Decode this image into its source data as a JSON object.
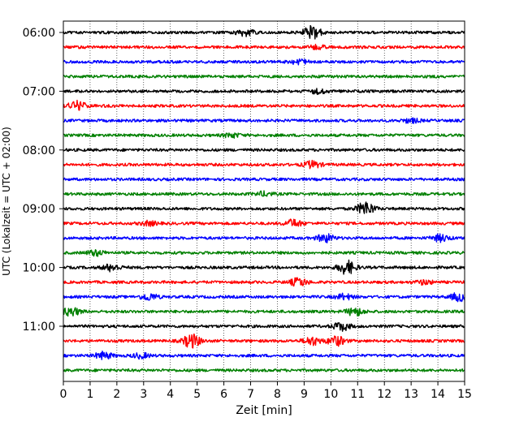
{
  "chart_data": {
    "type": "line",
    "xlabel": "Zeit  [min]",
    "ylabel": "UTC (Lokalzeit = UTC + 02:00)",
    "xlim": [
      0,
      15
    ],
    "x_ticks": [
      0,
      1,
      2,
      3,
      4,
      5,
      6,
      7,
      8,
      9,
      10,
      11,
      12,
      13,
      14,
      15
    ],
    "x_tick_labels": [
      "0",
      "1",
      "2",
      "3",
      "4",
      "5",
      "6",
      "7",
      "8",
      "9",
      "10",
      "11",
      "12",
      "13",
      "14",
      "15"
    ],
    "x_grid": true,
    "y_ticks": [
      "06:00",
      "07:00",
      "08:00",
      "09:00",
      "10:00",
      "11:00"
    ],
    "trace_interval_min": 15,
    "first_trace": "06:00",
    "trace_colors": [
      "#000000",
      "#ff0000",
      "#0000ff",
      "#008000"
    ],
    "series": [
      {
        "start": "06:00",
        "color": "#000000",
        "events": [
          {
            "t": 6.8,
            "amp": 0.45
          },
          {
            "t": 9.3,
            "amp": 1.0
          }
        ]
      },
      {
        "start": "06:15",
        "color": "#ff0000",
        "events": [
          {
            "t": 9.5,
            "amp": 0.25
          }
        ]
      },
      {
        "start": "06:30",
        "color": "#0000ff",
        "events": [
          {
            "t": 8.8,
            "amp": 0.35
          }
        ]
      },
      {
        "start": "06:45",
        "color": "#008000",
        "events": []
      },
      {
        "start": "07:00",
        "color": "#000000",
        "events": [
          {
            "t": 9.5,
            "amp": 0.3
          }
        ]
      },
      {
        "start": "07:15",
        "color": "#ff0000",
        "events": [
          {
            "t": 0.5,
            "amp": 0.7
          }
        ]
      },
      {
        "start": "07:30",
        "color": "#0000ff",
        "events": [
          {
            "t": 13.0,
            "amp": 0.3
          }
        ]
      },
      {
        "start": "07:45",
        "color": "#008000",
        "events": [
          {
            "t": 6.3,
            "amp": 0.3
          }
        ]
      },
      {
        "start": "08:00",
        "color": "#000000",
        "events": []
      },
      {
        "start": "08:15",
        "color": "#ff0000",
        "events": [
          {
            "t": 9.3,
            "amp": 0.5
          }
        ]
      },
      {
        "start": "08:30",
        "color": "#0000ff",
        "events": []
      },
      {
        "start": "08:45",
        "color": "#008000",
        "events": [
          {
            "t": 7.5,
            "amp": 0.3
          }
        ]
      },
      {
        "start": "09:00",
        "color": "#000000",
        "events": [
          {
            "t": 11.3,
            "amp": 1.0
          }
        ]
      },
      {
        "start": "09:15",
        "color": "#ff0000",
        "events": [
          {
            "t": 8.6,
            "amp": 0.55
          },
          {
            "t": 3.2,
            "amp": 0.3
          }
        ]
      },
      {
        "start": "09:30",
        "color": "#0000ff",
        "events": [
          {
            "t": 9.8,
            "amp": 0.6
          },
          {
            "t": 14.1,
            "amp": 0.5
          }
        ]
      },
      {
        "start": "09:45",
        "color": "#008000",
        "events": [
          {
            "t": 1.2,
            "amp": 0.4
          }
        ]
      },
      {
        "start": "10:00",
        "color": "#000000",
        "events": [
          {
            "t": 10.6,
            "amp": 1.0
          },
          {
            "t": 1.8,
            "amp": 0.5
          }
        ]
      },
      {
        "start": "10:15",
        "color": "#ff0000",
        "events": [
          {
            "t": 8.8,
            "amp": 0.6
          },
          {
            "t": 13.5,
            "amp": 0.3
          }
        ]
      },
      {
        "start": "10:30",
        "color": "#0000ff",
        "events": [
          {
            "t": 3.2,
            "amp": 0.5
          },
          {
            "t": 14.8,
            "amp": 0.6
          },
          {
            "t": 10.5,
            "amp": 0.4
          }
        ]
      },
      {
        "start": "10:45",
        "color": "#008000",
        "events": [
          {
            "t": 0.3,
            "amp": 0.6
          },
          {
            "t": 10.9,
            "amp": 0.6
          }
        ]
      },
      {
        "start": "11:00",
        "color": "#000000",
        "events": [
          {
            "t": 10.4,
            "amp": 0.6
          }
        ]
      },
      {
        "start": "11:15",
        "color": "#ff0000",
        "events": [
          {
            "t": 4.8,
            "amp": 1.0
          },
          {
            "t": 9.3,
            "amp": 0.6
          },
          {
            "t": 10.2,
            "amp": 0.7
          }
        ]
      },
      {
        "start": "11:30",
        "color": "#0000ff",
        "events": [
          {
            "t": 1.5,
            "amp": 0.5
          },
          {
            "t": 2.9,
            "amp": 0.35
          }
        ]
      },
      {
        "start": "11:45",
        "color": "#008000",
        "events": []
      }
    ]
  }
}
